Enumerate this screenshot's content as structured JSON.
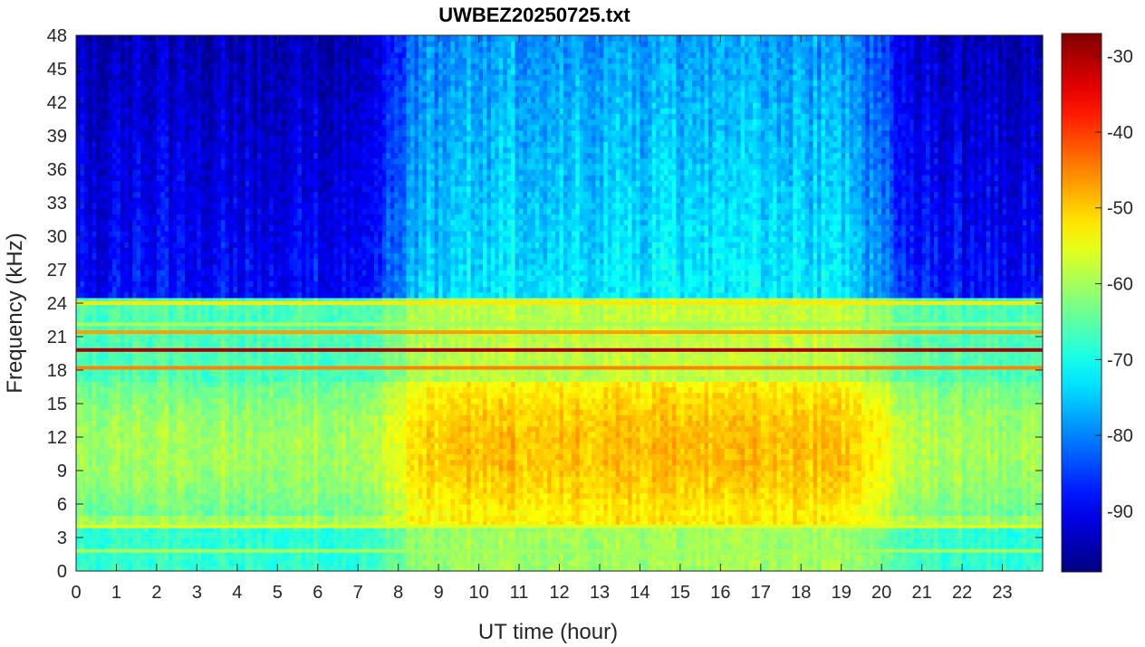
{
  "chart_data": {
    "type": "heatmap",
    "title": "UWBEZ20250725.txt",
    "xlabel": "UT time (hour)",
    "ylabel": "Frequency (kHz)",
    "xlim": [
      0,
      24
    ],
    "ylim": [
      0,
      48
    ],
    "x_ticks": [
      0,
      1,
      2,
      3,
      4,
      5,
      6,
      7,
      8,
      9,
      10,
      11,
      12,
      13,
      14,
      15,
      16,
      17,
      18,
      19,
      20,
      21,
      22,
      23
    ],
    "y_ticks": [
      0,
      3,
      6,
      9,
      12,
      15,
      18,
      21,
      24,
      27,
      30,
      33,
      36,
      39,
      42,
      45,
      48
    ],
    "colorbar": {
      "colormap": "jet",
      "range": [
        -98,
        -27
      ],
      "ticks": [
        -90,
        -80,
        -70,
        -60,
        -50,
        -40,
        -30
      ],
      "colors": [
        "#00008f",
        "#0000ff",
        "#0080ff",
        "#00ffff",
        "#80ff80",
        "#ffff00",
        "#ff8000",
        "#ff0000",
        "#800000"
      ]
    },
    "features": {
      "transmitter_lines_khz": [
        {
          "freq": 19.8,
          "level": -30
        },
        {
          "freq": 18.2,
          "level": -45
        },
        {
          "freq": 21.4,
          "level": -47
        },
        {
          "freq": 24.0,
          "level": -52
        },
        {
          "freq": 22.1,
          "level": -60
        },
        {
          "freq": 4.0,
          "level": -56
        },
        {
          "freq": 1.8,
          "level": -60
        }
      ],
      "daytime_noise_hours": [
        8,
        20
      ],
      "low_band_level_day": -52,
      "low_band_level_night": -60,
      "high_band_level_day": -72,
      "high_band_level_night": -88
    }
  }
}
